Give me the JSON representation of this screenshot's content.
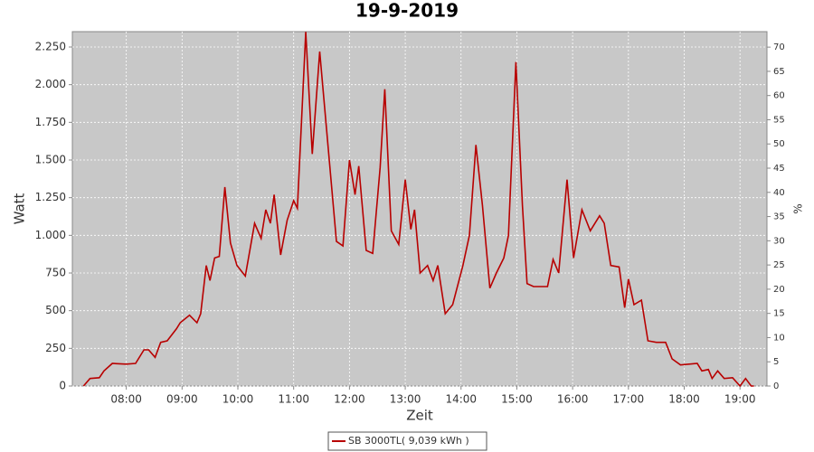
{
  "chart_data": {
    "type": "line",
    "title": "19-9-2019",
    "y_label": "Watt",
    "y2_label": "%",
    "x_label": "Zeit",
    "x": [
      "07:14",
      "07:21",
      "07:31",
      "07:36",
      "07:45",
      "08:00",
      "08:10",
      "08:19",
      "08:24",
      "08:31",
      "08:37",
      "08:44",
      "08:54",
      "08:58",
      "09:08",
      "09:16",
      "09:20",
      "09:26",
      "09:30",
      "09:35",
      "09:40",
      "09:46",
      "09:52",
      "09:59",
      "10:08",
      "10:18",
      "10:25",
      "10:30",
      "10:35",
      "10:39",
      "10:46",
      "10:53",
      "11:00",
      "11:04",
      "11:08",
      "11:13",
      "11:20",
      "11:28",
      "11:34",
      "11:46",
      "11:53",
      "12:00",
      "12:06",
      "12:10",
      "12:18",
      "12:25",
      "12:33",
      "12:38",
      "12:45",
      "12:53",
      "13:00",
      "13:06",
      "13:10",
      "13:16",
      "13:24",
      "13:30",
      "13:35",
      "13:43",
      "13:51",
      "14:02",
      "14:09",
      "14:16",
      "14:23",
      "14:31",
      "14:38",
      "14:46",
      "14:51",
      "14:59",
      "15:06",
      "15:11",
      "15:18",
      "15:33",
      "15:39",
      "15:45",
      "15:54",
      "16:01",
      "16:10",
      "16:19",
      "16:29",
      "16:34",
      "16:41",
      "16:50",
      "16:56",
      "17:00",
      "17:06",
      "17:14",
      "17:21",
      "17:30",
      "17:40",
      "17:47",
      "17:56",
      "18:14",
      "18:19",
      "18:26",
      "18:30",
      "18:36",
      "18:43",
      "18:52",
      "19:00",
      "19:06",
      "19:12",
      "19:15"
    ],
    "series": [
      {
        "name": "SB 3000TL( 9,039 kWh )",
        "color": "#b80000",
        "values": [
          0,
          50,
          55,
          100,
          150,
          145,
          150,
          240,
          240,
          190,
          290,
          300,
          380,
          420,
          470,
          420,
          480,
          800,
          700,
          850,
          860,
          1320,
          950,
          800,
          730,
          1080,
          980,
          1170,
          1080,
          1270,
          870,
          1100,
          1230,
          1180,
          1700,
          2350,
          1540,
          2220,
          1800,
          960,
          930,
          1500,
          1270,
          1460,
          900,
          880,
          1450,
          1970,
          1030,
          940,
          1370,
          1040,
          1170,
          750,
          800,
          700,
          800,
          480,
          540,
          800,
          1000,
          1600,
          1200,
          650,
          750,
          850,
          1000,
          2150,
          1200,
          680,
          660,
          660,
          840,
          750,
          1370,
          850,
          1170,
          1030,
          1130,
          1080,
          800,
          790,
          520,
          710,
          540,
          570,
          300,
          290,
          290,
          180,
          140,
          150,
          100,
          110,
          50,
          100,
          50,
          55,
          0,
          50,
          0,
          0
        ]
      }
    ],
    "xlim": [
      "07:02",
      "19:29"
    ],
    "xticks": [
      "08:00",
      "09:00",
      "10:00",
      "11:00",
      "12:00",
      "13:00",
      "14:00",
      "15:00",
      "16:00",
      "17:00",
      "18:00",
      "19:00"
    ],
    "ylim": [
      0,
      2352
    ],
    "yticks": [
      0,
      250,
      500,
      750,
      {
        "value": 1000,
        "label": "1.000"
      },
      {
        "value": 1250,
        "label": "1.250"
      },
      {
        "value": 1500,
        "label": "1.500"
      },
      {
        "value": 1750,
        "label": "1.750"
      },
      {
        "value": 2000,
        "label": "2.000"
      },
      {
        "value": 2250,
        "label": "2.250"
      }
    ],
    "y2lim": [
      0,
      73.2
    ],
    "y2ticks": [
      0,
      5,
      10,
      15,
      20,
      25,
      30,
      35,
      40,
      45,
      50,
      55,
      60,
      65,
      70
    ],
    "grid": true,
    "legend": "bottom",
    "plot_background": "#c8c8c8"
  }
}
